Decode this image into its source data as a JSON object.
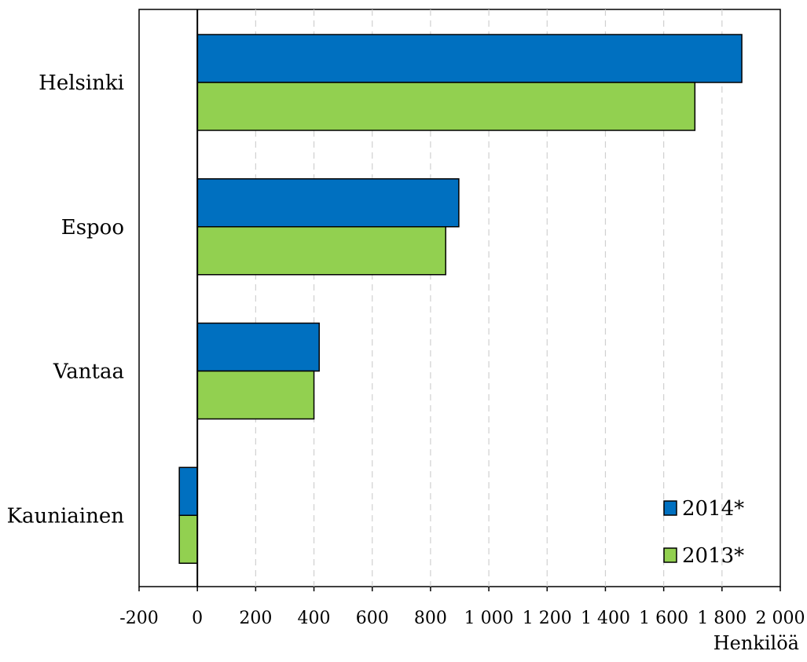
{
  "chart_data": {
    "type": "bar",
    "orientation": "horizontal",
    "categories": [
      "Helsinki",
      "Espoo",
      "Vantaa",
      "Kauniainen"
    ],
    "series": [
      {
        "name": "2014*",
        "values": [
          1868,
          897,
          418,
          -62
        ],
        "color": "#0070c0"
      },
      {
        "name": "2013*",
        "values": [
          1707,
          852,
          400,
          -62
        ],
        "color": "#92d050"
      }
    ],
    "title": "",
    "xlabel": "Henkilöä",
    "ylabel": "",
    "xlim": [
      -200,
      2000
    ],
    "xticks": [
      -200,
      0,
      200,
      400,
      600,
      800,
      1000,
      1200,
      1400,
      1600,
      1800,
      2000
    ],
    "xtick_labels": [
      "-200",
      "0",
      "200",
      "400",
      "600",
      "800",
      "1 000",
      "1 200",
      "1 400",
      "1 600",
      "1 800",
      "2 000"
    ],
    "grid": "vertical dashed",
    "legend_position": "bottom-right"
  }
}
